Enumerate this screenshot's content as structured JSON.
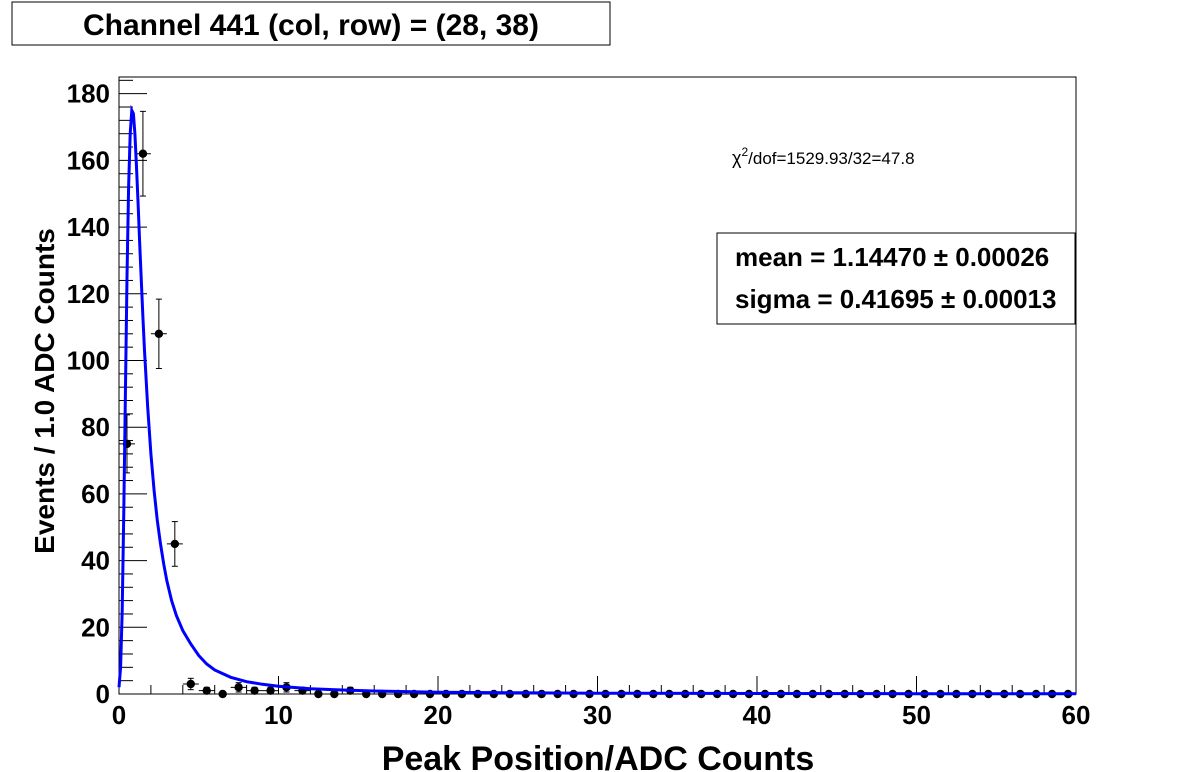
{
  "chart_data": {
    "type": "scatter",
    "title": "Channel  441   (col, row) = (28, 38)",
    "xlabel": "Peak Position/ADC Counts",
    "ylabel": "Events / 1.0 ADC Counts",
    "xlim": [
      0,
      60
    ],
    "ylim": [
      0,
      185
    ],
    "grid": false,
    "xticks": [
      "0",
      "10",
      "20",
      "30",
      "40",
      "50",
      "60"
    ],
    "yticks": [
      "0",
      "20",
      "40",
      "60",
      "80",
      "100",
      "120",
      "140",
      "160",
      "180"
    ],
    "chi2": {
      "symbol": "χ",
      "exponent": "2",
      "text": "/dof=1529.93/32=47.8"
    },
    "fit_params": [
      {
        "label": "mean =  1.14470  ± 0.00026"
      },
      {
        "label": "sigma =  0.41695  ± 0.00013"
      }
    ],
    "series": [
      {
        "kind": "points",
        "color": "#000000",
        "x": [
          0.5,
          1.5,
          2.5,
          3.5,
          4.5,
          5.5,
          6.5,
          7.5,
          8.5,
          9.5,
          10.5,
          11.5,
          12.5,
          13.5,
          14.5,
          15.5,
          16.5,
          17.5,
          18.5,
          19.5,
          20.5,
          21.5,
          22.5,
          23.5,
          24.5,
          25.5,
          26.5,
          27.5,
          28.5,
          29.5,
          30.5,
          31.5,
          32.5,
          33.5,
          34.5,
          35.5,
          36.5,
          37.5,
          38.5,
          39.5,
          40.5,
          41.5,
          42.5,
          43.5,
          44.5,
          45.5,
          46.5,
          47.5,
          48.5,
          49.5,
          50.5,
          51.5,
          52.5,
          53.5,
          54.5,
          55.5,
          56.5,
          57.5,
          58.5,
          59.5
        ],
        "y": [
          75,
          162,
          108,
          45,
          3,
          1,
          0,
          2,
          1,
          1,
          2,
          1,
          0,
          0,
          1,
          0,
          0,
          0,
          0,
          0,
          0,
          0,
          0,
          0,
          0,
          0,
          0,
          0,
          0,
          0,
          0,
          0,
          0,
          0,
          0,
          0,
          0,
          0,
          0,
          0,
          0,
          0,
          0,
          0,
          0,
          0,
          0,
          0,
          0,
          0,
          0,
          0,
          0,
          0,
          0,
          0,
          0,
          0,
          0,
          0
        ],
        "yerr": [
          8.7,
          12.7,
          10.4,
          6.7,
          1.7,
          1.0,
          0,
          1.4,
          1.0,
          1.0,
          1.4,
          1.0,
          0,
          0,
          1.0,
          0,
          0,
          0,
          0,
          0,
          0,
          0,
          0,
          0,
          0,
          0,
          0,
          0,
          0,
          0,
          0,
          0,
          0,
          0,
          0,
          0,
          0,
          0,
          0,
          0,
          0,
          0,
          0,
          0,
          0,
          0,
          0,
          0,
          0,
          0,
          0,
          0,
          0,
          0,
          0,
          0,
          0,
          0,
          0,
          0
        ]
      },
      {
        "kind": "fit",
        "color": "#0000ff",
        "x": [
          0,
          0.1,
          0.2,
          0.3,
          0.4,
          0.5,
          0.6,
          0.7,
          0.8,
          0.9,
          1.0,
          1.1,
          1.2,
          1.3,
          1.4,
          1.5,
          1.6,
          1.8,
          2.0,
          2.2,
          2.4,
          2.6,
          2.8,
          3.0,
          3.3,
          3.6,
          4.0,
          4.5,
          5.0,
          5.5,
          6.0,
          7.0,
          8.0,
          9.0,
          10.0,
          12.0,
          14.0,
          16.0,
          20.0,
          25.0,
          30.0,
          40.0,
          50.0,
          60.0
        ],
        "y": [
          2,
          8,
          25,
          55,
          90,
          125,
          152,
          168,
          175,
          174,
          168,
          158,
          147,
          135,
          124,
          113,
          103,
          86,
          72,
          61,
          52,
          45,
          39,
          34,
          28,
          23.5,
          19,
          15,
          11.5,
          9,
          7.2,
          5,
          3.7,
          2.9,
          2.3,
          1.6,
          1.2,
          0.9,
          0.55,
          0.35,
          0.25,
          0.15,
          0.1,
          0.07
        ]
      }
    ]
  }
}
